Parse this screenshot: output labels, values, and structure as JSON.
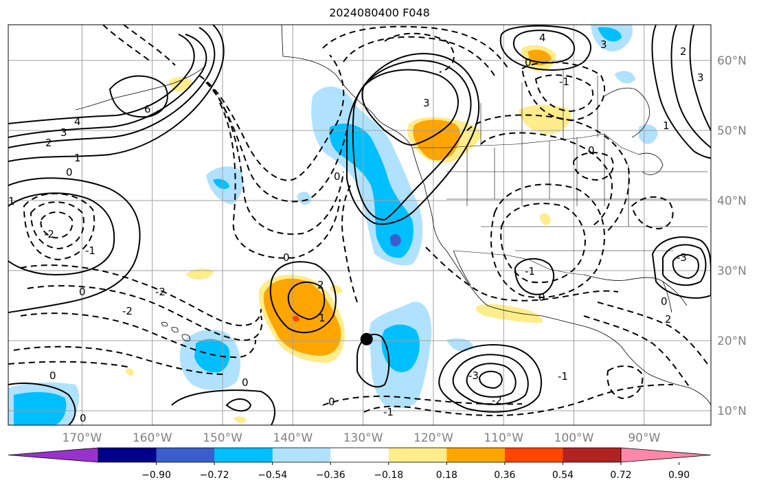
{
  "title": "2024080400 F048",
  "map": {
    "lon_ticks": [
      "170°W",
      "160°W",
      "150°W",
      "140°W",
      "130°W",
      "120°W",
      "110°W",
      "100°W",
      "90°W"
    ],
    "lat_ticks": [
      "60°N",
      "50°N",
      "40°N",
      "30°N",
      "20°N",
      "10°N"
    ],
    "tick_color": "#808080",
    "gridline_color": "#a0a0a0",
    "marker": {
      "lon": -129.5,
      "lat": 21
    }
  },
  "contour_labels": [
    "6",
    "4",
    "3",
    "2",
    "1",
    "0",
    "-1",
    "-2",
    "-3"
  ],
  "colorbar": {
    "colors": [
      "#9932cc",
      "#00008b",
      "#3a5fcd",
      "#00bfff",
      "#b0e2ff",
      "#ffffff",
      "#ffec8b",
      "#ffa500",
      "#ff4500",
      "#b22222",
      "#ff88aa"
    ],
    "ticks": [
      "−0.90",
      "−0.72",
      "−0.54",
      "−0.36",
      "−0.18",
      "0.18",
      "0.36",
      "0.54",
      "0.72",
      "0.90"
    ]
  }
}
